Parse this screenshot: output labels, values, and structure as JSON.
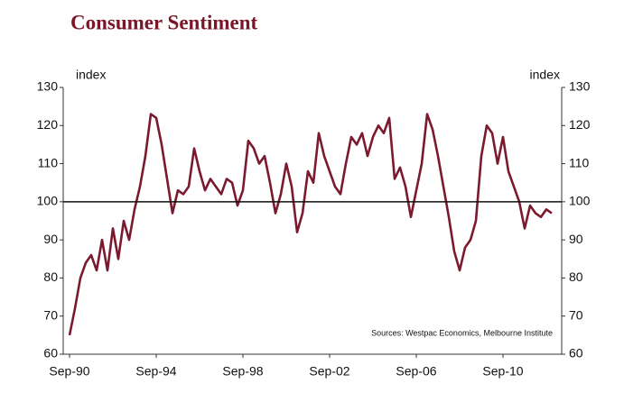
{
  "chart_data": {
    "type": "line",
    "title": "Consumer Sentiment",
    "y_label": "index",
    "y2_label": "index",
    "annotation": "Sources: Westpac Economics, Melbourne Institute",
    "categories": [
      "Sep-90",
      null,
      null,
      null,
      null,
      null,
      null,
      null,
      null,
      null,
      null,
      null,
      null,
      null,
      null,
      null,
      "Sep-94",
      null,
      null,
      null,
      null,
      null,
      null,
      null,
      null,
      null,
      null,
      null,
      null,
      null,
      null,
      null,
      "Sep-98",
      null,
      null,
      null,
      null,
      null,
      null,
      null,
      null,
      null,
      null,
      null,
      null,
      null,
      null,
      null,
      "Sep-02",
      null,
      null,
      null,
      null,
      null,
      null,
      null,
      null,
      null,
      null,
      null,
      null,
      null,
      null,
      null,
      "Sep-06",
      null,
      null,
      null,
      null,
      null,
      null,
      null,
      null,
      null,
      null,
      null,
      null,
      null,
      null,
      null,
      "Sep-10",
      null,
      null,
      null,
      null,
      null,
      null,
      null,
      null,
      null
    ],
    "series": [
      {
        "name": "Consumer Sentiment",
        "color": "#7b1a2e",
        "values": [
          65,
          72,
          80,
          84,
          86,
          82,
          90,
          82,
          93,
          85,
          95,
          90,
          98,
          104,
          112,
          123,
          122,
          115,
          106,
          97,
          103,
          102,
          104,
          114,
          108,
          103,
          106,
          104,
          102,
          106,
          105,
          99,
          103,
          116,
          114,
          110,
          112,
          105,
          97,
          102,
          110,
          104,
          92,
          97,
          108,
          105,
          118,
          112,
          108,
          104,
          102,
          110,
          117,
          115,
          118,
          112,
          117,
          120,
          118,
          122,
          106,
          109,
          104,
          96,
          103,
          110,
          123,
          119,
          112,
          104,
          96,
          87,
          82,
          88,
          90,
          95,
          112,
          120,
          118,
          110,
          117,
          108,
          104,
          100,
          93,
          99,
          97,
          96,
          98,
          97
        ]
      }
    ],
    "ylim": [
      60,
      130
    ],
    "yticks": [
      60,
      70,
      80,
      90,
      100,
      110,
      120,
      130
    ],
    "y2lim": [
      60,
      130
    ],
    "y2ticks": [
      60,
      70,
      80,
      90,
      100,
      110,
      120,
      130
    ],
    "reference_line": 100,
    "grid": false
  }
}
